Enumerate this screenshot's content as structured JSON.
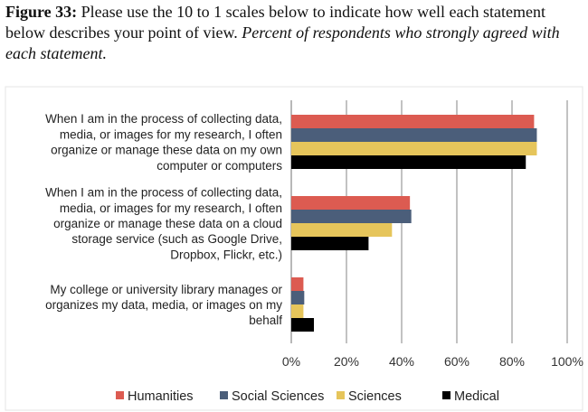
{
  "figure": {
    "label": "Figure 33:",
    "text": "Please use the 10 to 1 scales below to indicate how well each statement below describes your point of view.",
    "italic_text": "Percent of respondents who strongly agreed with each statement."
  },
  "chart_data": {
    "type": "bar",
    "orientation": "horizontal",
    "categories": [
      [
        "When I am in the process of collecting data,",
        "media, or images for my research, I often",
        "organize or manage these data on my own",
        "computer or computers"
      ],
      [
        "When I am in the process of collecting data,",
        "media, or images for my research, I often",
        "organize or manage these data on a cloud",
        "storage service (such as Google Drive,",
        "Dropbox, Flickr, etc.)"
      ],
      [
        "My college or university library manages or",
        "organizes my data, media, or images on my",
        "behalf"
      ]
    ],
    "series": [
      {
        "name": "Humanities",
        "color": "#dc5b51",
        "values": [
          88,
          43,
          4.4
        ]
      },
      {
        "name": "Social Sciences",
        "color": "#4b5e7a",
        "values": [
          89,
          43.5,
          4.7
        ]
      },
      {
        "name": "Sciences",
        "color": "#e6c55b",
        "values": [
          89,
          36.5,
          4.4
        ]
      },
      {
        "name": "Medical",
        "color": "#000000",
        "values": [
          85,
          28,
          8.2
        ]
      }
    ],
    "xlim": [
      0,
      100
    ],
    "xticks": [
      "0%",
      "20%",
      "40%",
      "60%",
      "80%",
      "100%"
    ],
    "grid": true,
    "legend": "bottom"
  }
}
